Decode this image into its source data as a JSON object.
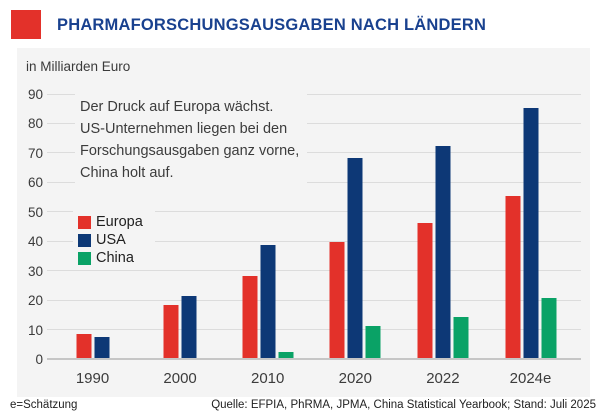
{
  "header": {
    "title": "PHARMAFORSCHUNGSAUSGABEN NACH LÄNDERN",
    "brand_color": "#e3312a",
    "title_color": "#19418f"
  },
  "chart_data": {
    "type": "bar",
    "title": "Pharmaforschungsausgaben nach Ländern",
    "unit_label": "in Milliarden Euro",
    "categories": [
      "1990",
      "2000",
      "2010",
      "2020",
      "2022",
      "2024e"
    ],
    "series": [
      {
        "name": "Europa",
        "color": "#e3312a",
        "values": [
          8,
          18,
          28,
          39.5,
          46,
          55
        ]
      },
      {
        "name": "USA",
        "color": "#0d3876",
        "values": [
          7,
          21,
          38.5,
          68,
          72,
          85
        ]
      },
      {
        "name": "China",
        "color": "#0aa266",
        "values": [
          null,
          null,
          2,
          11,
          14,
          20.5
        ]
      }
    ],
    "ylim": [
      0,
      90
    ],
    "ytick_step": 10,
    "grid": true,
    "legend_position": "middle-left",
    "annotation_lines": [
      "Der Druck auf Europa wächst.",
      "US-Unternehmen liegen bei den",
      "Forschungsausgaben ganz vorne,",
      "China holt auf."
    ]
  },
  "footer": {
    "note": "e=Schätzung",
    "source": "Quelle: EFPIA, PhRMA, JPMA, China Statistical Yearbook; Stand: Juli 2025"
  }
}
